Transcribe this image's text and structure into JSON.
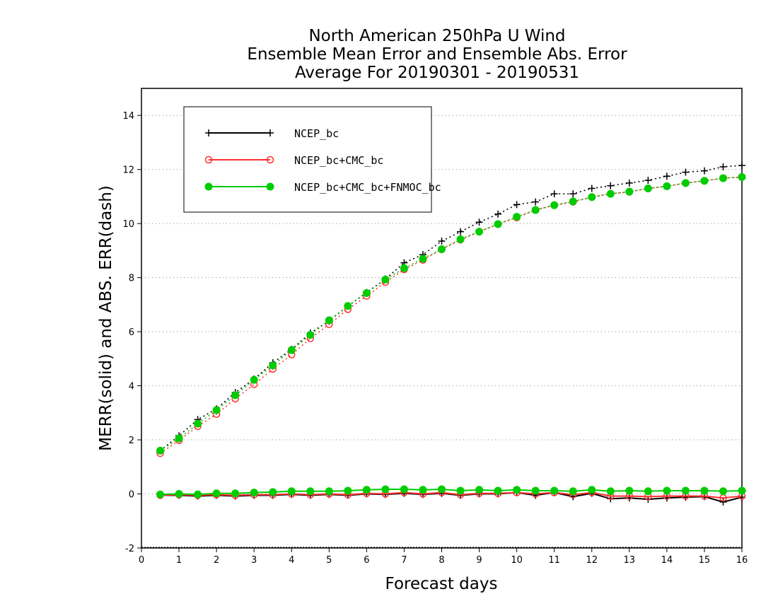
{
  "chart_data": {
    "type": "line",
    "title": [
      "North American 250hPa U Wind",
      "Ensemble Mean Error and Ensemble Abs. Error",
      "Average For 20190301 - 20190531"
    ],
    "xlabel": "Forecast days",
    "ylabel": "MERR(solid) and ABS. ERR(dash)",
    "xlim": [
      0,
      16
    ],
    "ylim": [
      -2,
      15
    ],
    "xticks": [
      "0",
      "1",
      "2",
      "3",
      "4",
      "5",
      "6",
      "7",
      "8",
      "9",
      "10",
      "11",
      "12",
      "13",
      "14",
      "15",
      "16"
    ],
    "yticks": [
      "-2",
      "0",
      "2",
      "4",
      "6",
      "8",
      "10",
      "12",
      "14"
    ],
    "grid": "horizontal dotted",
    "legend_position": "top-left",
    "x": [
      0.5,
      1,
      1.5,
      2,
      2.5,
      3,
      3.5,
      4,
      4.5,
      5,
      5.5,
      6,
      6.5,
      7,
      7.5,
      8,
      8.5,
      9,
      9.5,
      10,
      10.5,
      11,
      11.5,
      12,
      12.5,
      13,
      13.5,
      14,
      14.5,
      15,
      15.5,
      16
    ],
    "series": [
      {
        "name": "NCEP_bc",
        "color": "#000000",
        "marker": "plus",
        "merr": [
          -0.05,
          -0.05,
          -0.08,
          -0.05,
          -0.08,
          -0.05,
          -0.05,
          -0.02,
          -0.05,
          -0.02,
          -0.05,
          0.0,
          -0.02,
          0.02,
          -0.02,
          0.02,
          -0.05,
          0.0,
          0.0,
          0.05,
          -0.05,
          0.05,
          -0.1,
          0.02,
          -0.18,
          -0.15,
          -0.2,
          -0.15,
          -0.12,
          -0.1,
          -0.3,
          -0.12
        ],
        "abs_err": [
          1.6,
          2.15,
          2.75,
          3.15,
          3.75,
          4.25,
          4.85,
          5.35,
          5.95,
          6.4,
          6.95,
          7.45,
          7.95,
          8.55,
          8.85,
          9.35,
          9.7,
          10.05,
          10.35,
          10.7,
          10.8,
          11.1,
          11.1,
          11.3,
          11.4,
          11.5,
          11.6,
          11.75,
          11.9,
          11.95,
          12.1,
          12.15
        ]
      },
      {
        "name": "NCEP_bc+CMC_bc",
        "color": "#ff3030",
        "marker": "open-circle",
        "merr": [
          -0.05,
          -0.03,
          -0.05,
          -0.03,
          -0.05,
          -0.03,
          -0.03,
          0.0,
          -0.03,
          0.0,
          -0.03,
          0.02,
          0.0,
          0.05,
          0.0,
          0.05,
          -0.03,
          0.02,
          0.02,
          0.05,
          0.0,
          0.05,
          -0.03,
          0.05,
          -0.08,
          -0.08,
          -0.1,
          -0.08,
          -0.08,
          -0.08,
          -0.15,
          -0.08
        ],
        "abs_err": [
          1.5,
          1.98,
          2.5,
          2.95,
          3.52,
          4.05,
          4.62,
          5.15,
          5.75,
          6.27,
          6.83,
          7.32,
          7.83,
          8.3,
          8.65,
          9.05,
          9.4,
          9.7,
          9.98,
          10.22,
          10.5,
          10.68,
          10.8,
          10.98,
          11.1,
          11.17,
          11.3,
          11.38,
          11.5,
          11.58,
          11.68,
          11.72
        ]
      },
      {
        "name": "NCEP_bc+CMC_bc+FNMOC_bc",
        "color": "#00cc00",
        "marker": "filled-circle",
        "merr": [
          -0.02,
          0.0,
          -0.02,
          0.02,
          0.02,
          0.05,
          0.07,
          0.1,
          0.1,
          0.1,
          0.12,
          0.15,
          0.17,
          0.17,
          0.15,
          0.17,
          0.12,
          0.15,
          0.12,
          0.15,
          0.12,
          0.12,
          0.1,
          0.15,
          0.1,
          0.12,
          0.1,
          0.12,
          0.12,
          0.12,
          0.1,
          0.12
        ],
        "abs_err": [
          1.6,
          2.05,
          2.6,
          3.1,
          3.65,
          4.22,
          4.75,
          5.32,
          5.88,
          6.42,
          6.95,
          7.43,
          7.93,
          8.35,
          8.7,
          9.05,
          9.42,
          9.7,
          9.98,
          10.25,
          10.5,
          10.68,
          10.82,
          10.98,
          11.1,
          11.18,
          11.3,
          11.38,
          11.5,
          11.58,
          11.68,
          11.72
        ]
      }
    ]
  }
}
